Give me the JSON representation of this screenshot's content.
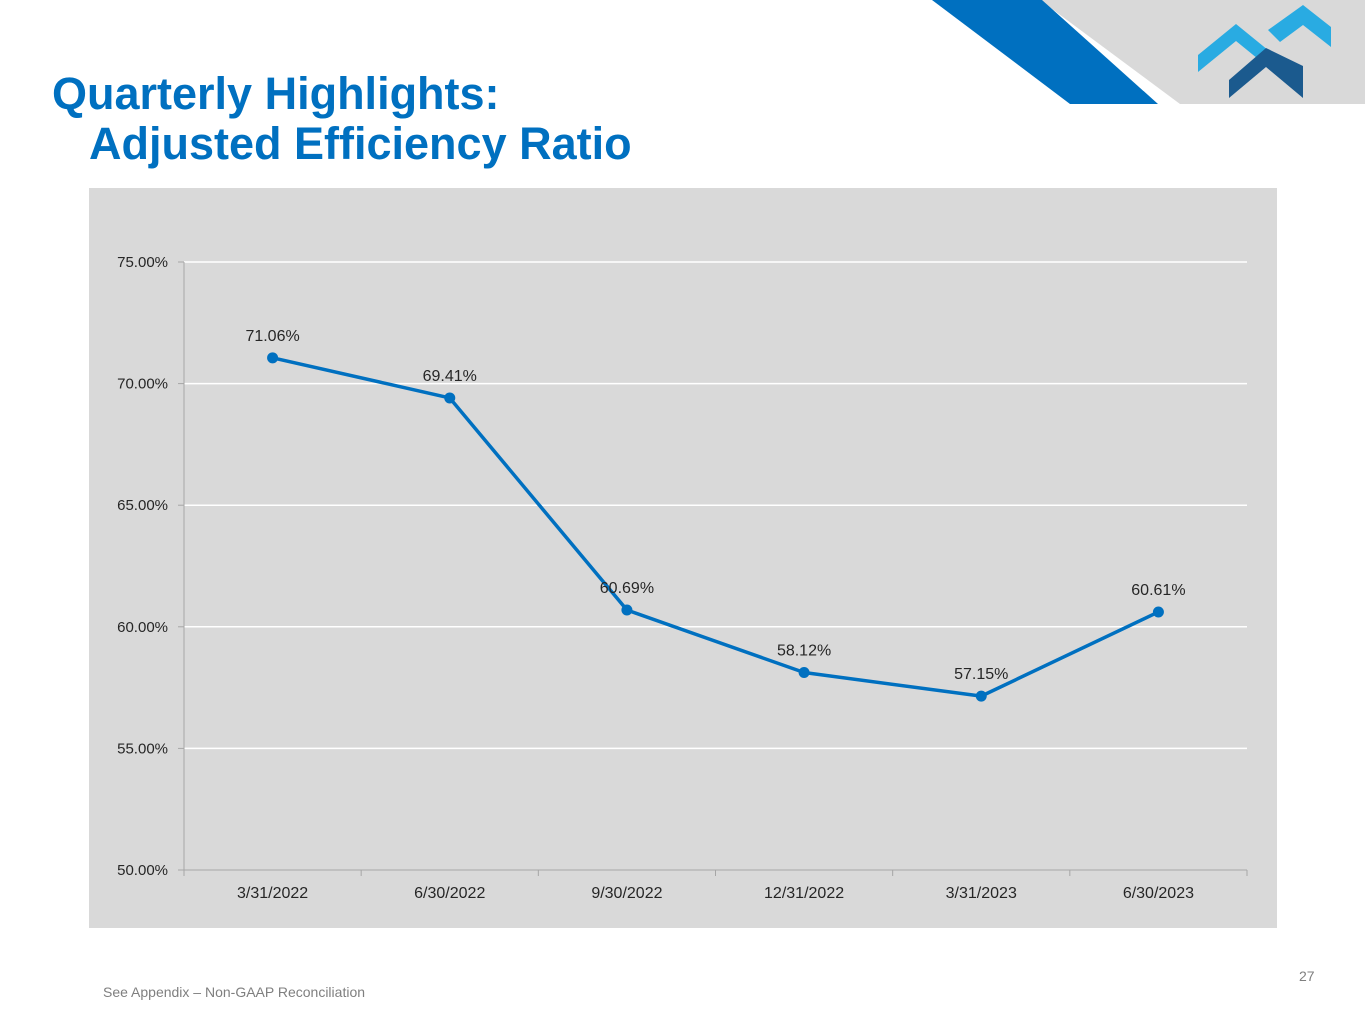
{
  "slide": {
    "title": "Quarterly Highlights:",
    "subtitle": "Adjusted Efficiency Ratio",
    "footnote": "See Appendix – Non-GAAP Reconciliation",
    "page_number": "27"
  },
  "colors": {
    "brand_blue": "#0070C0",
    "logo_light_blue": "#29ABE2",
    "logo_dark_blue": "#1B5A8E",
    "chart_background": "#D9D9D9",
    "line_color": "#0070C0",
    "gridline": "#FFFFFF"
  },
  "chart_data": {
    "type": "line",
    "title": "",
    "xlabel": "",
    "ylabel": "",
    "categories": [
      "3/31/2022",
      "6/30/2022",
      "9/30/2022",
      "12/31/2022",
      "3/31/2023",
      "6/30/2023"
    ],
    "series": [
      {
        "name": "Adjusted Efficiency Ratio",
        "values": [
          71.06,
          69.41,
          60.69,
          58.12,
          57.15,
          60.61
        ],
        "labels": [
          "71.06%",
          "69.41%",
          "60.69%",
          "58.12%",
          "57.15%",
          "60.61%"
        ]
      }
    ],
    "ylim": [
      50,
      75
    ],
    "yticks": [
      50,
      55,
      60,
      65,
      70,
      75
    ],
    "ytick_labels": [
      "50.00%",
      "55.00%",
      "60.00%",
      "65.00%",
      "70.00%",
      "75.00%"
    ],
    "grid": true,
    "legend": "none"
  }
}
